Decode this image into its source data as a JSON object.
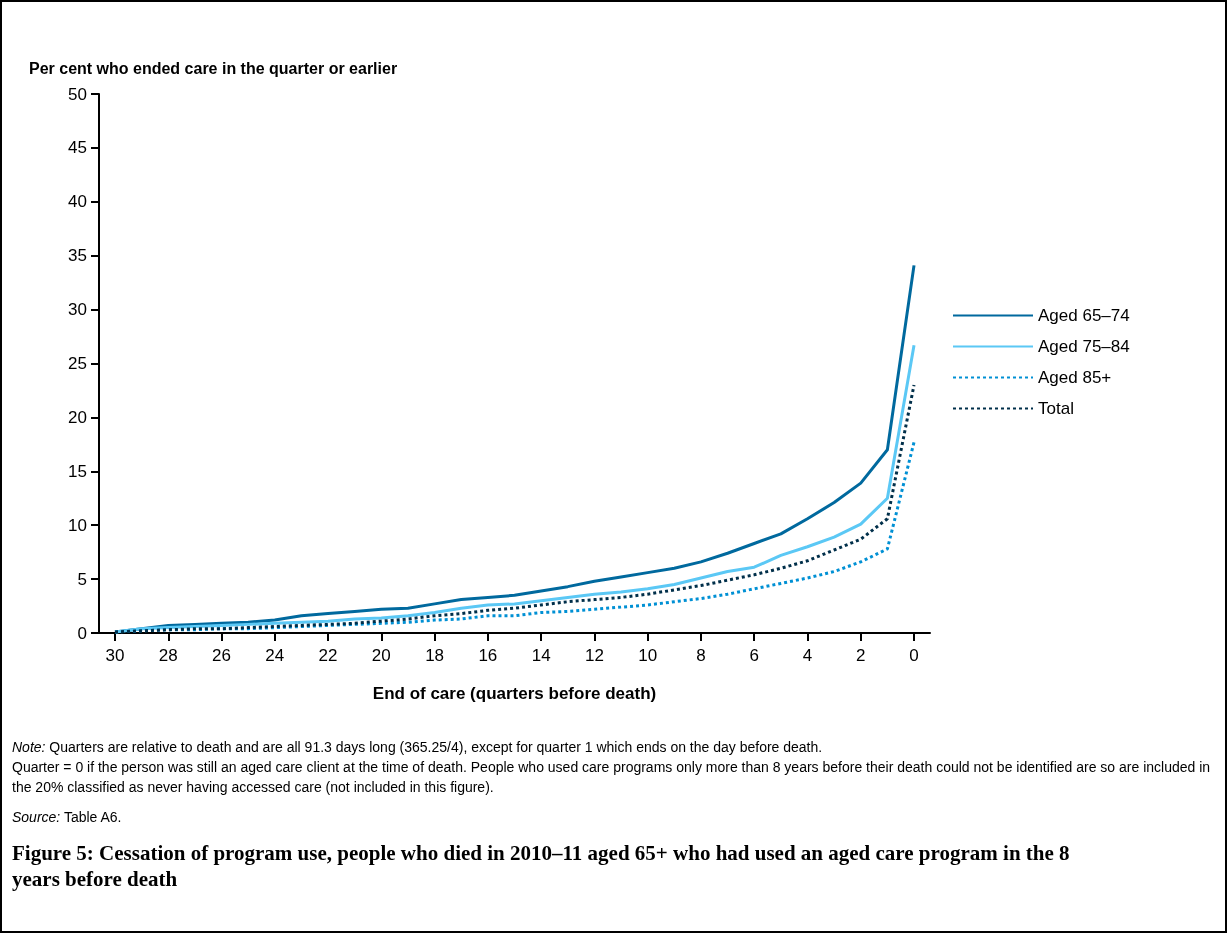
{
  "chart_data": {
    "type": "line",
    "title": "Figure 5: Cessation of program use, people who died in 2010–11 aged 65+ who had used an aged care program in the 8 years before death",
    "xlabel": "End of care (quarters before death)",
    "ylabel": "Per cent who ended care in the quarter or earlier",
    "x": [
      30,
      29,
      28,
      27,
      26,
      25,
      24,
      23,
      22,
      21,
      20,
      19,
      18,
      17,
      16,
      15,
      14,
      13,
      12,
      11,
      10,
      9,
      8,
      7,
      6,
      5,
      4,
      3,
      2,
      1,
      0
    ],
    "series": [
      {
        "name": "Aged 65–74",
        "color": "#00699e",
        "line_style": "solid",
        "values": [
          0.1,
          0.4,
          0.7,
          0.8,
          0.9,
          1.0,
          1.2,
          1.6,
          1.8,
          2.0,
          2.2,
          2.3,
          2.7,
          3.1,
          3.3,
          3.5,
          3.9,
          4.3,
          4.8,
          5.2,
          5.6,
          6.0,
          6.6,
          7.4,
          8.3,
          9.2,
          10.6,
          12.1,
          13.9,
          17.0,
          34.1
        ]
      },
      {
        "name": "Aged 75–84",
        "color": "#5bc8f5",
        "line_style": "solid",
        "values": [
          0.1,
          0.4,
          0.5,
          0.6,
          0.7,
          0.8,
          0.9,
          1.0,
          1.1,
          1.3,
          1.4,
          1.6,
          1.9,
          2.3,
          2.6,
          2.7,
          3.0,
          3.3,
          3.6,
          3.8,
          4.1,
          4.5,
          5.1,
          5.7,
          6.1,
          7.2,
          8.0,
          8.9,
          10.1,
          12.5,
          26.7
        ]
      },
      {
        "name": "Aged 85+",
        "color": "#0090d4",
        "line_style": "dotted",
        "values": [
          0.1,
          0.2,
          0.3,
          0.3,
          0.4,
          0.4,
          0.5,
          0.6,
          0.7,
          0.8,
          0.9,
          1.0,
          1.2,
          1.3,
          1.6,
          1.6,
          1.9,
          2.0,
          2.2,
          2.4,
          2.6,
          2.9,
          3.2,
          3.6,
          4.1,
          4.6,
          5.1,
          5.7,
          6.6,
          7.8,
          17.7
        ]
      },
      {
        "name": "Total",
        "color": "#002f4a",
        "line_style": "dotted",
        "values": [
          0.1,
          0.2,
          0.3,
          0.4,
          0.4,
          0.5,
          0.6,
          0.7,
          0.8,
          0.9,
          1.1,
          1.3,
          1.6,
          1.8,
          2.1,
          2.3,
          2.6,
          2.9,
          3.1,
          3.3,
          3.6,
          4.0,
          4.4,
          4.9,
          5.4,
          6.0,
          6.7,
          7.7,
          8.7,
          10.6,
          23.0
        ]
      }
    ],
    "xlim": [
      30.6,
      -0.6
    ],
    "xticks": [
      30,
      28,
      26,
      24,
      22,
      20,
      18,
      16,
      14,
      12,
      10,
      8,
      6,
      4,
      2,
      0
    ],
    "ylim": [
      0,
      50
    ],
    "yticks": [
      0,
      5,
      10,
      15,
      20,
      25,
      30,
      35,
      40,
      45,
      50
    ],
    "grid": false,
    "legend": "right",
    "marker": "none",
    "annotations": [
      "Note: Quarters are relative to death and are all 91.3 days long (365.25/4), except for quarter 1 which ends on the day before death.",
      "Quarter = 0 if the person was still an aged care client at the time of death. People who used care programs only more than 8 years before their death could not be identified are so are included in the 20% classified as never having accessed care (not included in this figure).",
      "Source: Table A6."
    ]
  }
}
